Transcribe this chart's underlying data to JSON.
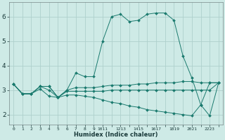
{
  "xlabel": "Humidex (Indice chaleur)",
  "background_color": "#ceeae6",
  "grid_color": "#aed0cc",
  "line_color": "#1a7a6e",
  "xlim": [
    -0.5,
    23.5
  ],
  "ylim": [
    1.6,
    6.6
  ],
  "yticks": [
    2,
    3,
    4,
    5,
    6
  ],
  "xtick_labels": [
    "0",
    "1",
    "2",
    "3",
    "4",
    "5",
    "6",
    "7",
    "8",
    "9",
    "1011",
    "1213",
    "1415",
    "1617",
    "1819",
    "2021",
    "2223"
  ],
  "series": [
    [
      3.25,
      2.85,
      2.85,
      3.15,
      3.15,
      2.7,
      3.0,
      3.7,
      3.55,
      3.55,
      5.0,
      6.0,
      6.1,
      5.8,
      5.85,
      6.1,
      6.15,
      6.15,
      5.85,
      4.4,
      3.5,
      2.4,
      1.95,
      3.3
    ],
    [
      3.25,
      2.85,
      2.85,
      3.15,
      3.15,
      2.7,
      3.0,
      3.1,
      3.1,
      3.1,
      3.15,
      3.2,
      3.2,
      3.2,
      3.25,
      3.25,
      3.3,
      3.3,
      3.3,
      3.35,
      3.35,
      3.3,
      3.3,
      3.3
    ],
    [
      3.25,
      2.85,
      2.85,
      3.05,
      2.75,
      2.7,
      2.95,
      2.95,
      2.95,
      2.95,
      2.95,
      3.0,
      3.0,
      3.0,
      3.0,
      3.0,
      3.0,
      3.0,
      3.0,
      3.0,
      3.0,
      3.0,
      3.0,
      3.3
    ],
    [
      3.25,
      2.85,
      2.85,
      3.15,
      3.0,
      2.7,
      2.8,
      2.8,
      2.75,
      2.7,
      2.6,
      2.5,
      2.45,
      2.35,
      2.3,
      2.2,
      2.15,
      2.1,
      2.05,
      2.0,
      1.95,
      2.4,
      3.3,
      3.3
    ]
  ]
}
